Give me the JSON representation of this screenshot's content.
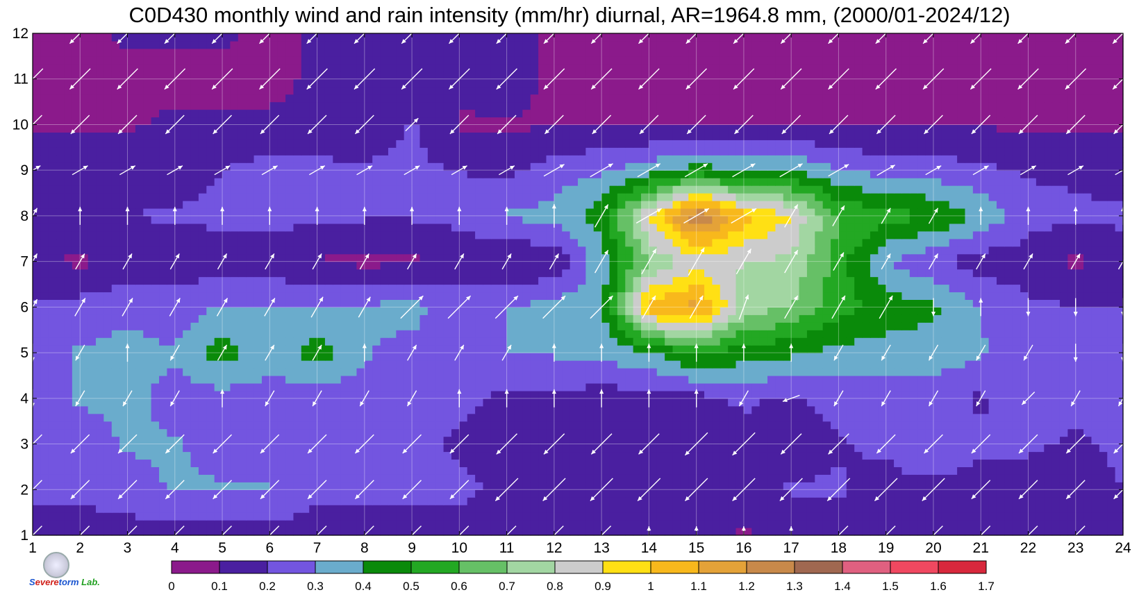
{
  "chart_data": {
    "type": "contour",
    "title": "C0D430 monthly wind and rain intensity (mm/hr) diurnal, AR=1964.8 mm, (2000/01-2024/12)",
    "x_ticks": [
      "1",
      "2",
      "3",
      "4",
      "5",
      "6",
      "7",
      "8",
      "9",
      "10",
      "11",
      "12",
      "13",
      "14",
      "15",
      "16",
      "17",
      "18",
      "19",
      "20",
      "21",
      "22",
      "23",
      "24"
    ],
    "y_ticks": [
      "1",
      "2",
      "3",
      "4",
      "5",
      "6",
      "7",
      "8",
      "9",
      "10",
      "11",
      "12"
    ],
    "xlim": [
      1,
      24
    ],
    "ylim": [
      1,
      12
    ],
    "grid": true,
    "colorbar": {
      "levels": [
        "0",
        "0.1",
        "0.2",
        "0.3",
        "0.4",
        "0.5",
        "0.6",
        "0.7",
        "0.8",
        "0.9",
        "1",
        "1.1",
        "1.2",
        "1.3",
        "1.4",
        "1.5",
        "1.6",
        "1.7"
      ],
      "colors": [
        "#8b1a8b",
        "#4a1fa0",
        "#7355e0",
        "#6aaccc",
        "#0a8a0a",
        "#23a823",
        "#66c066",
        "#a2d6a2",
        "#cccccc",
        "#ffe014",
        "#f8b81c",
        "#e4a238",
        "#c8894a",
        "#a06850",
        "#e06080",
        "#f04860",
        "#d8283c"
      ]
    },
    "rain_intensity": [
      [
        0.15,
        0.15,
        0.15,
        0.15,
        0.15,
        0.15,
        0.15,
        0.15,
        0.15,
        0.15,
        0.15,
        0.15,
        0.15,
        0.15,
        0.12,
        0.09,
        0.13,
        0.15,
        0.15,
        0.15,
        0.15,
        0.15,
        0.15,
        0.15
      ],
      [
        0.22,
        0.22,
        0.26,
        0.31,
        0.31,
        0.31,
        0.22,
        0.22,
        0.22,
        0.22,
        0.18,
        0.15,
        0.15,
        0.15,
        0.15,
        0.15,
        0.21,
        0.21,
        0.16,
        0.16,
        0.15,
        0.15,
        0.15,
        0.2
      ],
      [
        0.22,
        0.24,
        0.31,
        0.31,
        0.26,
        0.26,
        0.22,
        0.31,
        0.22,
        0.19,
        0.15,
        0.15,
        0.15,
        0.15,
        0.15,
        0.15,
        0.15,
        0.19,
        0.22,
        0.31,
        0.22,
        0.22,
        0.18,
        0.22
      ],
      [
        0.26,
        0.31,
        0.33,
        0.26,
        0.26,
        0.26,
        0.24,
        0.24,
        0.22,
        0.22,
        0.18,
        0.18,
        0.15,
        0.15,
        0.16,
        0.22,
        0.18,
        0.24,
        0.24,
        0.25,
        0.18,
        0.31,
        0.24,
        0.31
      ],
      [
        0.26,
        0.31,
        0.34,
        0.31,
        0.45,
        0.33,
        0.45,
        0.31,
        0.26,
        0.24,
        0.3,
        0.31,
        0.33,
        0.39,
        0.52,
        0.45,
        0.42,
        0.36,
        0.36,
        0.36,
        0.31,
        0.24,
        0.22,
        0.24
      ],
      [
        0.22,
        0.24,
        0.26,
        0.24,
        0.31,
        0.3,
        0.31,
        0.31,
        0.34,
        0.24,
        0.3,
        0.33,
        0.37,
        1.05,
        1.15,
        0.75,
        0.7,
        0.55,
        0.45,
        0.42,
        0.3,
        0.22,
        0.2,
        0.2
      ],
      [
        0.12,
        0.08,
        0.14,
        0.15,
        0.15,
        0.15,
        0.09,
        0.08,
        0.08,
        0.15,
        0.09,
        0.13,
        0.35,
        0.7,
        0.85,
        0.8,
        0.78,
        0.55,
        0.3,
        0.22,
        0.15,
        0.15,
        0.08,
        0.15
      ],
      [
        0.2,
        0.2,
        0.2,
        0.21,
        0.22,
        0.23,
        0.22,
        0.21,
        0.21,
        0.22,
        0.31,
        0.33,
        0.45,
        0.9,
        1.3,
        1.05,
        0.9,
        0.6,
        0.55,
        0.5,
        0.37,
        0.24,
        0.22,
        0.22
      ],
      [
        0.15,
        0.16,
        0.16,
        0.16,
        0.2,
        0.24,
        0.23,
        0.22,
        0.22,
        0.2,
        0.18,
        0.25,
        0.29,
        0.35,
        0.45,
        0.38,
        0.4,
        0.3,
        0.26,
        0.25,
        0.22,
        0.19,
        0.18,
        0.16
      ],
      [
        0.09,
        0.09,
        0.09,
        0.12,
        0.12,
        0.12,
        0.12,
        0.12,
        0.21,
        0.09,
        0.09,
        0.09,
        0.09,
        0.09,
        0.09,
        0.09,
        0.09,
        0.09,
        0.09,
        0.09,
        0.09,
        0.09,
        0.09,
        0.09
      ],
      [
        0.07,
        0.07,
        0.07,
        0.07,
        0.07,
        0.07,
        0.12,
        0.12,
        0.15,
        0.12,
        0.15,
        0.07,
        0.07,
        0.07,
        0.07,
        0.07,
        0.07,
        0.07,
        0.07,
        0.07,
        0.07,
        0.07,
        0.07,
        0.07
      ],
      [
        0.07,
        0.07,
        0.12,
        0.12,
        0.12,
        0.07,
        0.12,
        0.15,
        0.12,
        0.15,
        0.15,
        0.07,
        0.07,
        0.07,
        0.07,
        0.07,
        0.07,
        0.07,
        0.07,
        0.07,
        0.07,
        0.07,
        0.07,
        0.07
      ]
    ],
    "wind_direction_deg": [
      [
        225,
        225,
        225,
        225,
        225,
        225,
        225,
        225,
        225,
        225,
        225,
        225,
        225,
        90,
        90,
        90,
        90,
        225,
        225,
        225,
        225,
        225,
        225,
        225
      ],
      [
        225,
        225,
        225,
        225,
        225,
        225,
        225,
        225,
        225,
        225,
        225,
        225,
        225,
        225,
        225,
        225,
        225,
        225,
        225,
        225,
        225,
        225,
        225,
        225
      ],
      [
        225,
        225,
        225,
        225,
        225,
        225,
        225,
        225,
        225,
        225,
        225,
        225,
        225,
        225,
        225,
        225,
        225,
        225,
        225,
        225,
        225,
        225,
        225,
        225
      ],
      [
        270,
        240,
        240,
        240,
        90,
        240,
        240,
        240,
        240,
        90,
        90,
        90,
        90,
        90,
        90,
        240,
        200,
        240,
        240,
        240,
        240,
        225,
        240,
        240
      ],
      [
        270,
        240,
        90,
        240,
        60,
        60,
        60,
        90,
        60,
        60,
        60,
        90,
        90,
        90,
        90,
        90,
        90,
        240,
        240,
        240,
        240,
        240,
        270,
        270
      ],
      [
        60,
        60,
        60,
        60,
        60,
        60,
        60,
        60,
        45,
        45,
        45,
        45,
        45,
        60,
        60,
        70,
        60,
        60,
        60,
        270,
        90,
        270,
        270,
        270
      ],
      [
        60,
        60,
        60,
        60,
        60,
        60,
        60,
        60,
        60,
        60,
        60,
        60,
        60,
        60,
        60,
        60,
        60,
        60,
        60,
        60,
        60,
        60,
        60,
        60
      ],
      [
        60,
        90,
        90,
        90,
        90,
        90,
        90,
        90,
        90,
        90,
        90,
        90,
        60,
        30,
        30,
        30,
        60,
        60,
        60,
        60,
        90,
        90,
        90,
        90
      ],
      [
        30,
        30,
        30,
        30,
        30,
        30,
        30,
        30,
        30,
        30,
        30,
        30,
        30,
        30,
        30,
        30,
        30,
        30,
        30,
        30,
        30,
        30,
        30,
        30
      ],
      [
        225,
        225,
        225,
        225,
        225,
        225,
        225,
        225,
        45,
        225,
        225,
        225,
        225,
        225,
        225,
        225,
        225,
        225,
        225,
        225,
        225,
        225,
        225,
        225
      ],
      [
        225,
        225,
        225,
        225,
        225,
        225,
        225,
        225,
        225,
        225,
        225,
        225,
        225,
        225,
        225,
        225,
        225,
        225,
        225,
        225,
        225,
        225,
        225,
        225
      ],
      [
        225,
        225,
        225,
        225,
        225,
        225,
        225,
        225,
        225,
        225,
        225,
        225,
        225,
        225,
        225,
        225,
        225,
        225,
        225,
        225,
        225,
        225,
        225,
        225
      ]
    ],
    "wind_speed": [
      [
        0.6,
        0.6,
        0.6,
        0.6,
        0.6,
        0.6,
        0.6,
        0.6,
        0.6,
        0.6,
        0.6,
        0.6,
        0.6,
        0.3,
        0.3,
        0.3,
        0.3,
        0.6,
        0.6,
        0.6,
        0.6,
        0.6,
        0.6,
        0.6
      ],
      [
        0.6,
        0.6,
        0.6,
        0.6,
        0.6,
        0.6,
        0.6,
        0.6,
        0.6,
        0.6,
        0.8,
        0.8,
        0.8,
        0.8,
        0.8,
        0.8,
        0.8,
        0.8,
        0.8,
        0.8,
        0.6,
        0.6,
        0.6,
        0.6
      ],
      [
        0.6,
        0.6,
        0.6,
        0.6,
        0.6,
        0.6,
        0.6,
        0.6,
        0.6,
        0.6,
        0.7,
        0.7,
        0.7,
        0.7,
        0.8,
        0.8,
        0.7,
        0.7,
        0.6,
        0.6,
        0.6,
        0.6,
        0.6,
        0.6
      ],
      [
        0.3,
        0.3,
        0.3,
        0.3,
        0.3,
        0.3,
        0.3,
        0.3,
        0.3,
        0.3,
        0.3,
        0.3,
        0.3,
        0.3,
        0.3,
        0.3,
        0.3,
        0.3,
        0.3,
        0.3,
        0.3,
        0.3,
        0.3,
        0.3
      ],
      [
        0.3,
        0.3,
        0.3,
        0.3,
        0.3,
        0.3,
        0.3,
        0.3,
        0.3,
        0.3,
        0.3,
        0.3,
        0.3,
        0.3,
        0.3,
        0.3,
        0.3,
        0.3,
        0.3,
        0.3,
        0.3,
        0.3,
        0.3,
        0.3
      ],
      [
        0.3,
        0.4,
        0.4,
        0.4,
        0.4,
        0.4,
        0.5,
        0.5,
        0.8,
        0.8,
        0.8,
        0.8,
        0.8,
        0.6,
        0.6,
        0.6,
        0.6,
        0.6,
        0.6,
        0.3,
        0.3,
        0.3,
        0.3,
        0.3
      ],
      [
        0.3,
        0.3,
        0.3,
        0.3,
        0.3,
        0.3,
        0.3,
        0.3,
        0.3,
        0.3,
        0.3,
        0.3,
        0.6,
        0.7,
        0.8,
        0.7,
        0.6,
        0.4,
        0.3,
        0.3,
        0.3,
        0.3,
        0.3,
        0.3
      ],
      [
        0.3,
        0.3,
        0.3,
        0.3,
        0.3,
        0.3,
        0.3,
        0.3,
        0.3,
        0.3,
        0.3,
        0.5,
        0.6,
        0.7,
        0.7,
        0.7,
        0.6,
        0.5,
        0.3,
        0.3,
        0.3,
        0.3,
        0.3,
        0.3
      ],
      [
        0.3,
        0.3,
        0.3,
        0.3,
        0.3,
        0.3,
        0.3,
        0.3,
        0.3,
        0.3,
        0.3,
        0.5,
        0.6,
        0.6,
        0.6,
        0.6,
        0.6,
        0.5,
        0.4,
        0.3,
        0.3,
        0.3,
        0.3,
        0.3
      ],
      [
        0.6,
        0.6,
        0.6,
        0.6,
        0.6,
        0.6,
        0.6,
        0.6,
        0.3,
        0.6,
        0.6,
        0.6,
        0.6,
        0.6,
        0.6,
        0.6,
        0.6,
        0.6,
        0.6,
        0.6,
        0.6,
        0.6,
        0.6,
        0.6
      ],
      [
        0.7,
        0.7,
        0.7,
        0.7,
        0.7,
        0.7,
        0.7,
        0.7,
        0.7,
        0.7,
        0.7,
        0.7,
        0.7,
        0.7,
        0.7,
        0.7,
        0.7,
        0.7,
        0.7,
        0.7,
        0.7,
        0.7,
        0.7,
        0.7
      ],
      [
        0.7,
        0.7,
        0.7,
        0.7,
        0.7,
        0.7,
        0.7,
        0.7,
        0.7,
        0.7,
        0.7,
        0.7,
        0.7,
        0.7,
        0.7,
        0.7,
        0.7,
        0.7,
        0.7,
        0.7,
        0.7,
        0.7,
        0.7,
        0.7
      ]
    ]
  },
  "logo": {
    "text_1": "S",
    "text_2": "evere",
    "text_3": "torm",
    "text_4": "Lab."
  }
}
